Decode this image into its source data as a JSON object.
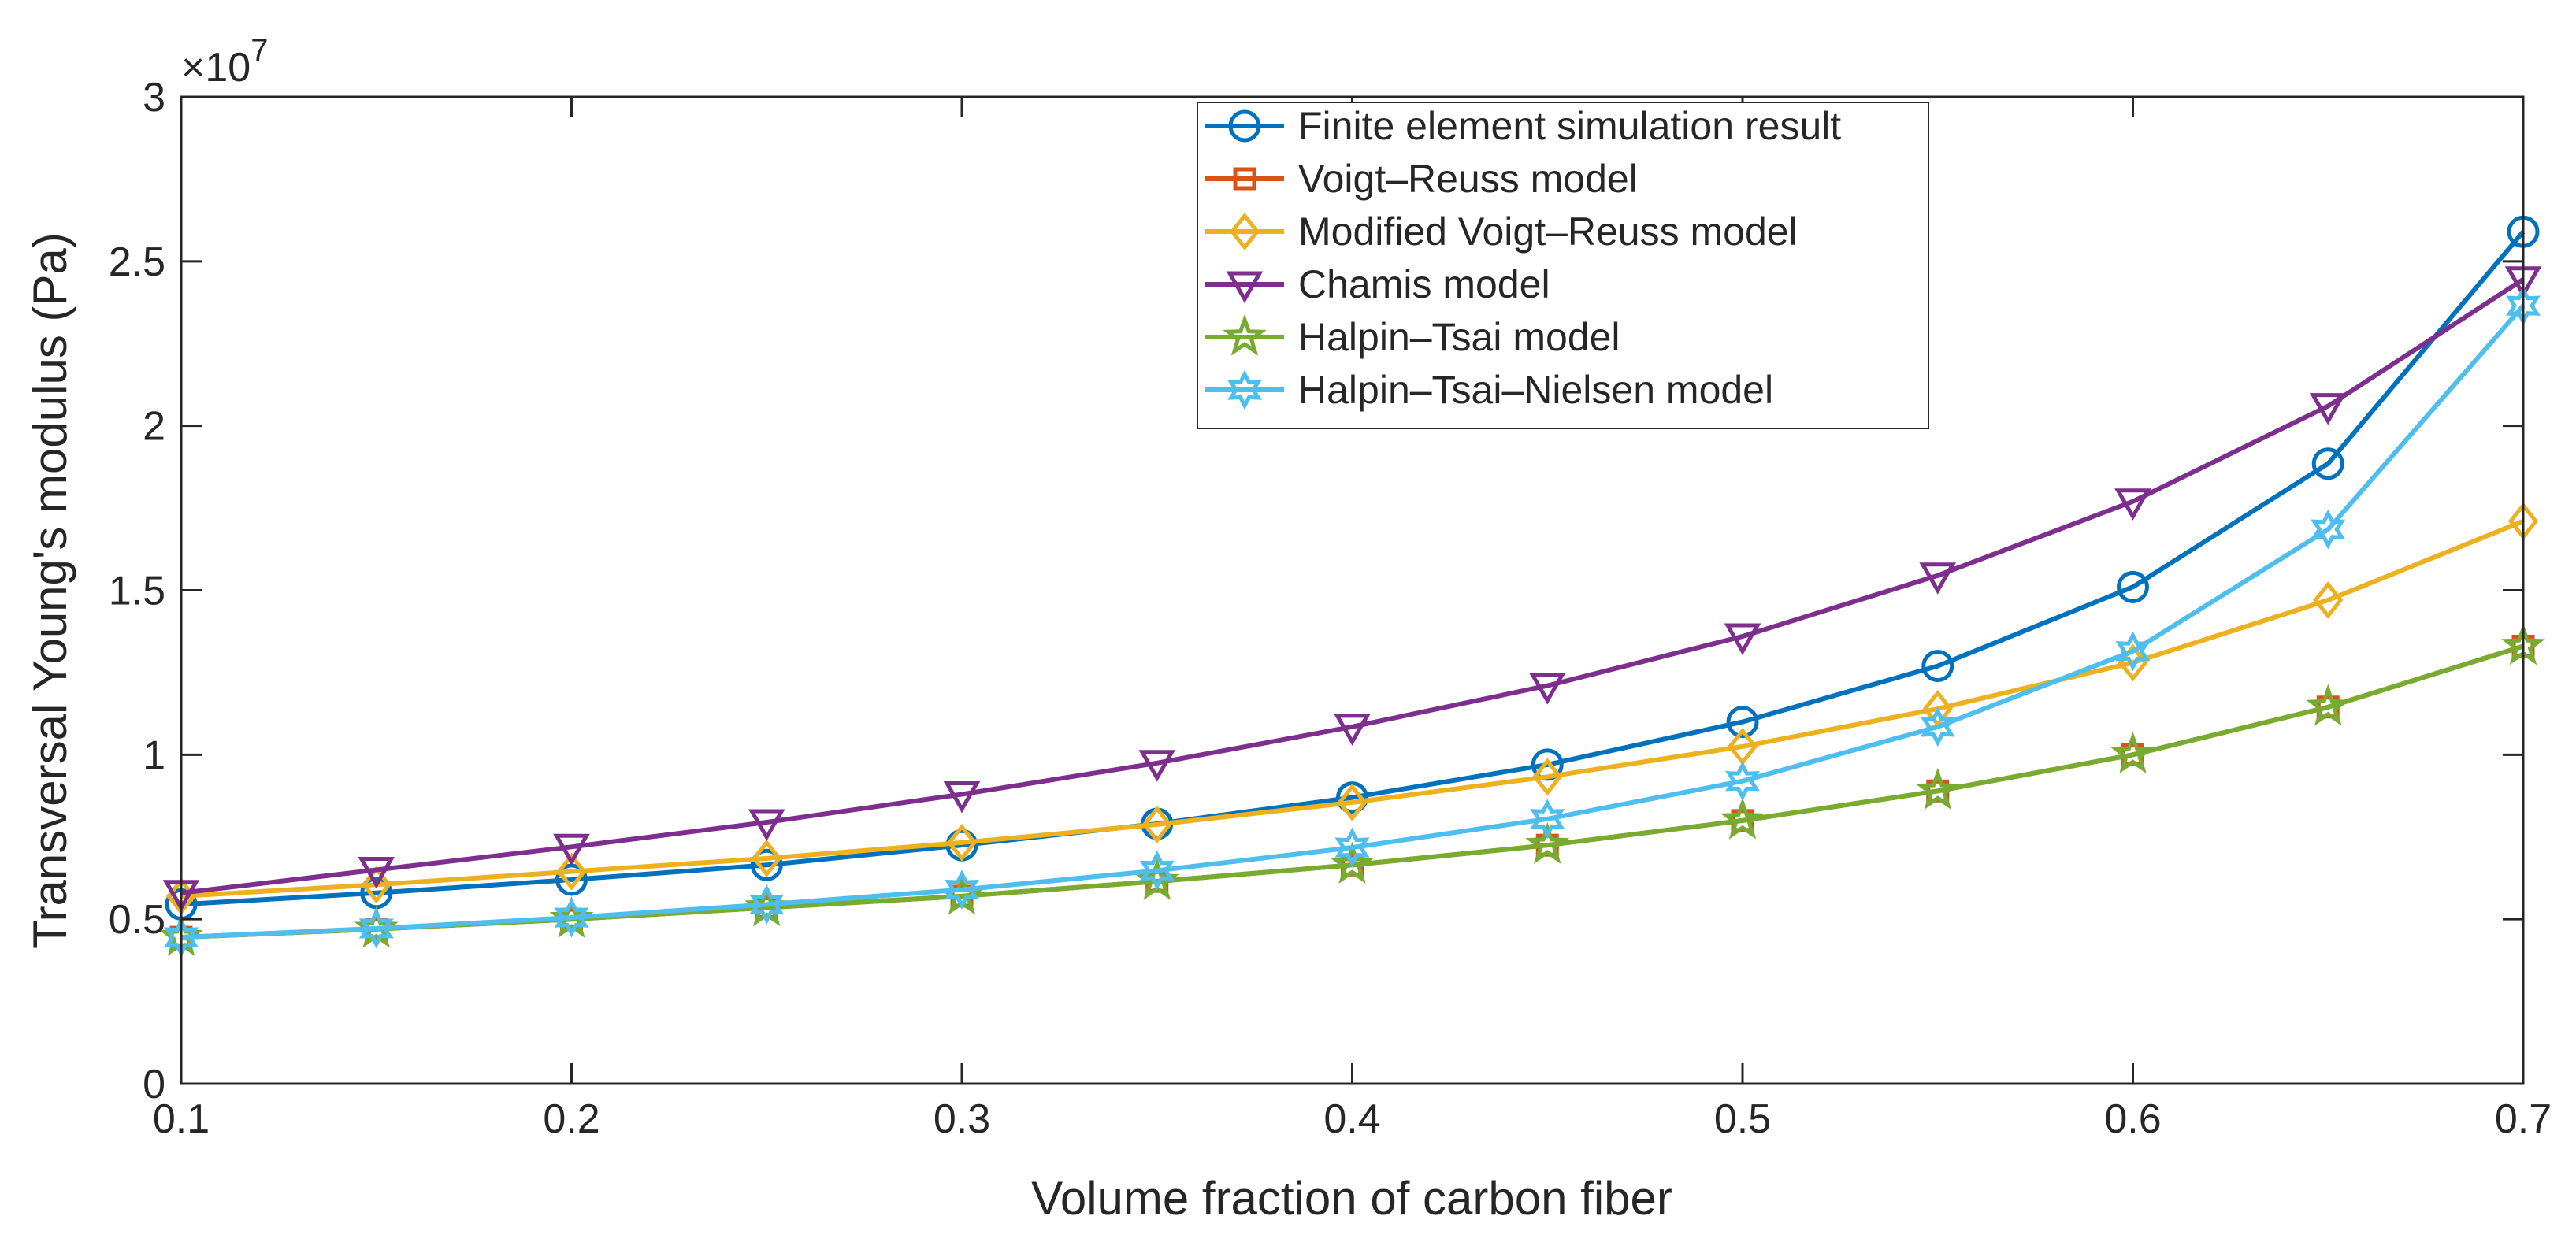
{
  "chart_data": {
    "type": "line",
    "title": "",
    "xlabel": "Volume fraction of carbon fiber",
    "ylabel": "Transversal Young's modulus (Pa)",
    "xlim": [
      0.1,
      0.7
    ],
    "ylim": [
      0,
      30000000
    ],
    "y_exponent_base": "×10",
    "y_exponent_power": "7",
    "x_ticks": [
      0.1,
      0.2,
      0.3,
      0.4,
      0.5,
      0.6,
      0.7
    ],
    "x_tick_labels": [
      "0.1",
      "0.2",
      "0.3",
      "0.4",
      "0.5",
      "0.6",
      "0.7"
    ],
    "y_ticks": [
      0,
      5000000,
      10000000,
      15000000,
      20000000,
      25000000,
      30000000
    ],
    "y_tick_labels": [
      "0",
      "0.5",
      "1",
      "1.5",
      "2",
      "2.5",
      "3"
    ],
    "grid": false,
    "legend_position": "top-center",
    "x": [
      0.1,
      0.15,
      0.2,
      0.25,
      0.3,
      0.35,
      0.4,
      0.45,
      0.5,
      0.55,
      0.6,
      0.65,
      0.7
    ],
    "series": [
      {
        "name": "Finite element simulation result",
        "color": "#0072BD",
        "marker": "circle",
        "values": [
          5450000,
          5800000,
          6200000,
          6650000,
          7250000,
          7900000,
          8700000,
          9700000,
          11000000,
          12700000,
          15100000,
          18850000,
          25900000
        ]
      },
      {
        "name": "Voigt–Reuss model",
        "color": "#D95319",
        "marker": "square",
        "values": [
          4450000,
          4700000,
          5000000,
          5350000,
          5700000,
          6150000,
          6650000,
          7250000,
          8000000,
          8900000,
          10000000,
          11450000,
          13300000
        ]
      },
      {
        "name": "Modified Voigt–Reuss model",
        "color": "#EDB120",
        "marker": "diamond",
        "values": [
          5700000,
          6050000,
          6450000,
          6850000,
          7330000,
          7880000,
          8550000,
          9330000,
          10250000,
          11400000,
          12800000,
          14700000,
          17100000
        ]
      },
      {
        "name": "Chamis model",
        "color": "#7E2F8E",
        "marker": "triangle-down",
        "values": [
          5800000,
          6500000,
          7200000,
          7950000,
          8800000,
          9750000,
          10850000,
          12100000,
          13600000,
          15450000,
          17700000,
          20600000,
          24450000
        ]
      },
      {
        "name": "Halpin–Tsai model",
        "color": "#77AC30",
        "marker": "pentagram",
        "values": [
          4450000,
          4700000,
          5000000,
          5350000,
          5700000,
          6150000,
          6650000,
          7250000,
          8000000,
          8900000,
          10000000,
          11450000,
          13300000
        ]
      },
      {
        "name": "Halpin–Tsai–Nielsen model",
        "color": "#4DBEEE",
        "marker": "hexagram",
        "values": [
          4450000,
          4720000,
          5050000,
          5450000,
          5900000,
          6480000,
          7180000,
          8050000,
          9200000,
          10850000,
          13150000,
          16850000,
          23650000
        ]
      }
    ]
  }
}
